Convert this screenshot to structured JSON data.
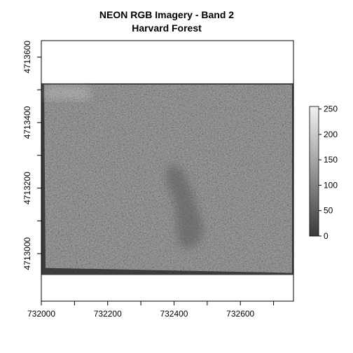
{
  "chart_data": {
    "type": "heatmap",
    "title": "NEON RGB Imagery - Band 2",
    "subtitle": "Harvard Forest",
    "xlabel": "",
    "ylabel": "",
    "xlim": [
      732000,
      732760
    ],
    "ylim": [
      4712855,
      4713650
    ],
    "x_ticks": [
      732000,
      732100,
      732200,
      732300,
      732400,
      732500,
      732600,
      732700
    ],
    "x_tick_labels": [
      "732000",
      "732200",
      "732400",
      "732600"
    ],
    "x_tick_label_values": [
      732000,
      732200,
      732400,
      732600
    ],
    "y_ticks": [
      4713000,
      4713100,
      4713200,
      4713300,
      4713400,
      4713500,
      4713600
    ],
    "y_tick_labels": [
      "4713000",
      "4713200",
      "4713400",
      "4713600"
    ],
    "y_tick_label_values": [
      4713000,
      4713200,
      4713400,
      4713600
    ],
    "raster_extent": {
      "xmin": 732000,
      "xmax": 732760,
      "ymin": 4712935,
      "ymax": 4713520
    },
    "colorbar": {
      "min": 0,
      "max": 255,
      "ticks": [
        0,
        50,
        100,
        150,
        200,
        250
      ],
      "tick_labels": [
        "0",
        "50",
        "100",
        "150",
        "200",
        "250"
      ],
      "color_low": "#3a3a3a",
      "color_high": "#f2f2f2"
    },
    "colors": {
      "nodata_frame": "#3b3b3b",
      "canopy_base": "#8c8c8c",
      "dark_patch": "#5a5a5a",
      "axis": "#000000"
    },
    "grid": false,
    "legend_position": "right"
  }
}
